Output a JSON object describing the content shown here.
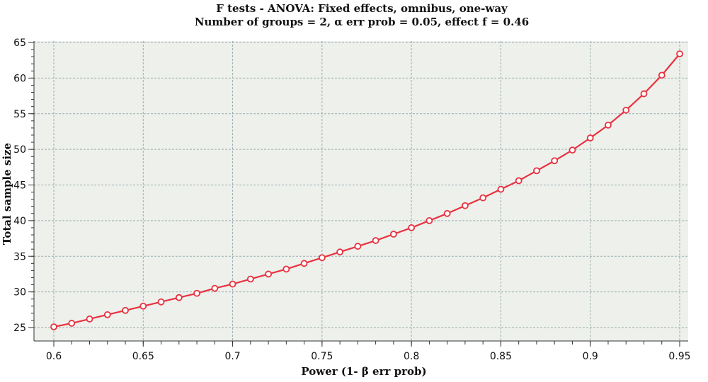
{
  "chart_data": {
    "type": "line",
    "title": "F tests - ANOVA: Fixed effects, omnibus, one-way",
    "subtitle": "Number of groups = 2, α err prob = 0.05,  effect f = 0.46",
    "xlabel": "Power (1- β err prob)",
    "ylabel": "Total sample size",
    "xlim": [
      0.6,
      0.95
    ],
    "ylim": [
      25,
      65
    ],
    "x_ticks": [
      "0.6",
      "0.65",
      "0.7",
      "0.75",
      "0.8",
      "0.85",
      "0.9",
      "0.95"
    ],
    "y_ticks": [
      "25",
      "30",
      "35",
      "40",
      "45",
      "50",
      "55",
      "60",
      "65"
    ],
    "grid": true,
    "series": [
      {
        "x": [
          0.6,
          0.61,
          0.62,
          0.63,
          0.64,
          0.65,
          0.66,
          0.67,
          0.68,
          0.69,
          0.7,
          0.71,
          0.72,
          0.73,
          0.74,
          0.75,
          0.76,
          0.77,
          0.78,
          0.79,
          0.8,
          0.81,
          0.82,
          0.83,
          0.84,
          0.85,
          0.86,
          0.87,
          0.88,
          0.89,
          0.9,
          0.91,
          0.92,
          0.93,
          0.94,
          0.95
        ],
        "values": [
          25.1,
          25.6,
          26.2,
          26.8,
          27.4,
          28.0,
          28.6,
          29.2,
          29.8,
          30.5,
          31.1,
          31.8,
          32.5,
          33.2,
          34.0,
          34.8,
          35.6,
          36.4,
          37.2,
          38.1,
          39.0,
          40.0,
          41.0,
          42.1,
          43.2,
          44.4,
          45.6,
          47.0,
          48.4,
          49.9,
          51.6,
          53.4,
          55.5,
          57.8,
          60.4,
          63.4
        ]
      }
    ],
    "colors": {
      "line": "#e8323f",
      "marker_fill": "#ffffff",
      "plot_background": "#eef0ec",
      "grid": "#9aaeb0"
    }
  }
}
